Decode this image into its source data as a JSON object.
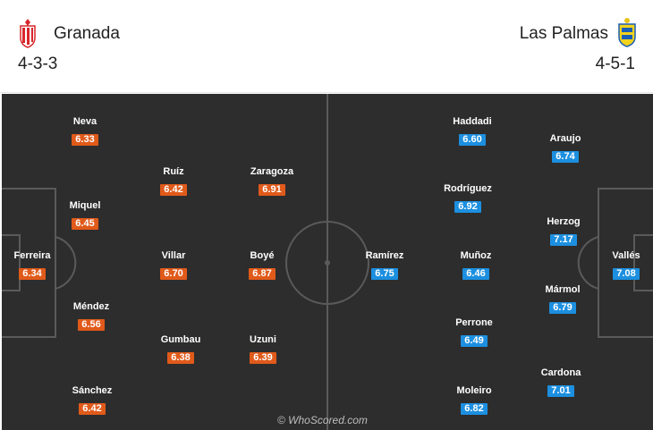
{
  "home": {
    "name": "Granada",
    "formation": "4-3-3",
    "color": "#e05a1a",
    "logo_icon": "granada-crest-icon",
    "players": [
      {
        "name": "Ferreira",
        "rating": "6.34"
      },
      {
        "name": "Neva",
        "rating": "6.33"
      },
      {
        "name": "Miquel",
        "rating": "6.45"
      },
      {
        "name": "Méndez",
        "rating": "6.56"
      },
      {
        "name": "Sánchez",
        "rating": "6.42"
      },
      {
        "name": "Ruíz",
        "rating": "6.42"
      },
      {
        "name": "Villar",
        "rating": "6.70"
      },
      {
        "name": "Gumbau",
        "rating": "6.38"
      },
      {
        "name": "Zaragoza",
        "rating": "6.91"
      },
      {
        "name": "Boyé",
        "rating": "6.87"
      },
      {
        "name": "Uzuni",
        "rating": "6.39"
      }
    ]
  },
  "away": {
    "name": "Las Palmas",
    "formation": "4-5-1",
    "color": "#1c8fe0",
    "logo_icon": "las-palmas-crest-icon",
    "players": [
      {
        "name": "Vallés",
        "rating": "7.08"
      },
      {
        "name": "Araujo",
        "rating": "6.74"
      },
      {
        "name": "Herzog",
        "rating": "7.17"
      },
      {
        "name": "Mármol",
        "rating": "6.79"
      },
      {
        "name": "Cardona",
        "rating": "7.01"
      },
      {
        "name": "Haddadi",
        "rating": "6.60"
      },
      {
        "name": "Rodríguez",
        "rating": "6.92"
      },
      {
        "name": "Muñoz",
        "rating": "6.46"
      },
      {
        "name": "Perrone",
        "rating": "6.49"
      },
      {
        "name": "Moleiro",
        "rating": "6.82"
      },
      {
        "name": "Ramírez",
        "rating": "6.75"
      }
    ]
  },
  "watermark": "© WhoScored.com"
}
